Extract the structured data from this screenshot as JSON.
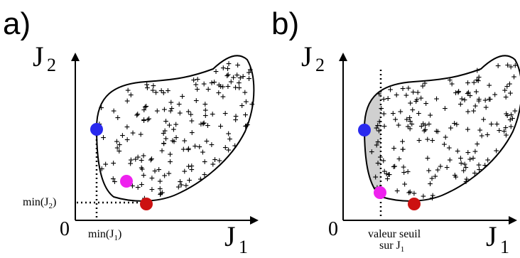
{
  "panels": {
    "a": {
      "letter": "a)",
      "y_axis": {
        "name": "J",
        "sub": "2"
      },
      "x_axis": {
        "name": "J",
        "sub": "1"
      },
      "origin": "0",
      "annotations": {
        "min_j2": {
          "text": "min(J",
          "sub": "2",
          "close": ")"
        },
        "min_j1": {
          "text": "min(J",
          "sub": "1",
          "close": ")"
        }
      },
      "points": [
        {
          "name": "blue",
          "color": "#2a2aee"
        },
        {
          "name": "magenta",
          "color": "#ee22ee"
        },
        {
          "name": "red",
          "color": "#cc1111"
        }
      ]
    },
    "b": {
      "letter": "b)",
      "y_axis": {
        "name": "J",
        "sub": "2"
      },
      "x_axis": {
        "name": "J",
        "sub": "1"
      },
      "origin": "0",
      "annotations": {
        "threshold": {
          "line1": "valeur seuil",
          "line2": "sur J",
          "sub": "1"
        }
      },
      "points": [
        {
          "name": "blue",
          "color": "#2a2aee"
        },
        {
          "name": "magenta",
          "color": "#ee22ee"
        },
        {
          "name": "red",
          "color": "#cc1111"
        }
      ],
      "shaded_fill": "#d0d0d0"
    }
  },
  "marker_glyph": "+"
}
